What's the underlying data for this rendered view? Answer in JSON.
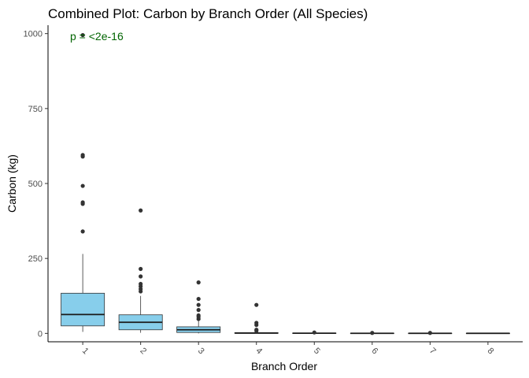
{
  "chart_data": {
    "type": "boxplot",
    "title": "Combined Plot: Carbon by Branch Order (All Species)",
    "xlabel": "Branch Order",
    "ylabel": "Carbon (kg)",
    "categories": [
      "1",
      "2",
      "3",
      "4",
      "5",
      "6",
      "7",
      "8"
    ],
    "ylim": [
      -28,
      1028
    ],
    "yticks": [
      0,
      250,
      500,
      750,
      1000
    ],
    "grid": false,
    "box_color": "#87CEEB",
    "annotation": {
      "text": "p = <2e-16",
      "color": "#006400"
    },
    "boxes": [
      {
        "category": "1",
        "lower_whisker": 5,
        "q1": 25,
        "median": 63,
        "q3": 134,
        "upper_whisker": 265,
        "outliers": [
          340,
          432,
          437,
          492,
          590,
          595,
          995
        ]
      },
      {
        "category": "2",
        "lower_whisker": 2,
        "q1": 12,
        "median": 37,
        "q3": 62,
        "upper_whisker": 125,
        "outliers": [
          140,
          148,
          157,
          165,
          190,
          215,
          410
        ]
      },
      {
        "category": "3",
        "lower_whisker": 0,
        "q1": 3,
        "median": 12,
        "q3": 22,
        "upper_whisker": 42,
        "outliers": [
          48,
          55,
          60,
          78,
          95,
          115,
          170
        ]
      },
      {
        "category": "4",
        "lower_whisker": 0,
        "q1": 0.5,
        "median": 1,
        "q3": 2,
        "upper_whisker": 4,
        "outliers": [
          8,
          12,
          28,
          35,
          95
        ]
      },
      {
        "category": "5",
        "lower_whisker": 0,
        "q1": 0.2,
        "median": 0.5,
        "q3": 1,
        "upper_whisker": 2,
        "outliers": [
          3
        ]
      },
      {
        "category": "6",
        "lower_whisker": 0,
        "q1": 0.1,
        "median": 0.3,
        "q3": 0.6,
        "upper_whisker": 1,
        "outliers": [
          1.5
        ]
      },
      {
        "category": "7",
        "lower_whisker": 0,
        "q1": 0.1,
        "median": 0.2,
        "q3": 0.5,
        "upper_whisker": 1,
        "outliers": [
          1.5
        ]
      },
      {
        "category": "8",
        "lower_whisker": 0,
        "q1": 0.1,
        "median": 0.2,
        "q3": 0.4,
        "upper_whisker": 0.8,
        "outliers": []
      }
    ]
  }
}
